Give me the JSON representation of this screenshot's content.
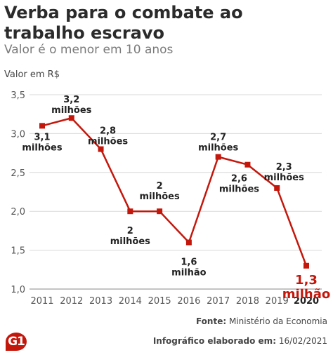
{
  "header": {
    "title": "Verba para o combate ao trabalho escravo",
    "subtitle": "Valor é o menor em 10 anos"
  },
  "footer": {
    "source_label": "Fonte:",
    "source_value": "Ministério da Economia",
    "credit_label": "Infográfico elaborado em:",
    "credit_value": "16/02/2021",
    "logo_text": "G1"
  },
  "colors": {
    "line": "#c4170c",
    "highlight": "#c4170c",
    "grid": "#d9d9d9",
    "text": "#333333"
  },
  "chart_data": {
    "type": "line",
    "title": "Verba para o combate ao trabalho escravo",
    "subtitle": "Valor é o menor em 10 anos",
    "ylabel": "Valor em R$",
    "xlabel": "",
    "ylim": [
      1.0,
      3.5
    ],
    "yticks": [
      "1,0",
      "1,5",
      "2,0",
      "2,5",
      "3,0",
      "3,5"
    ],
    "grid": true,
    "categories": [
      "2011",
      "2012",
      "2013",
      "2014",
      "2015",
      "2016",
      "2017",
      "2018",
      "2019",
      "2020"
    ],
    "series": [
      {
        "values": [
          3.1,
          3.2,
          2.8,
          2.0,
          2.0,
          1.6,
          2.7,
          2.6,
          2.3,
          1.3
        ],
        "labels": [
          [
            "3,1",
            "milhões"
          ],
          [
            "3,2",
            "milhões"
          ],
          [
            "2,8",
            "milhões"
          ],
          [
            "2",
            "milhões"
          ],
          [
            "2",
            "milhões"
          ],
          [
            "1,6",
            "milhão"
          ],
          [
            "2,7",
            "milhões"
          ],
          [
            "2,6",
            "milhões"
          ],
          [
            "2,3",
            "milhões"
          ],
          [
            "1,3",
            "milhão"
          ]
        ]
      }
    ],
    "highlight_category": "2020"
  }
}
